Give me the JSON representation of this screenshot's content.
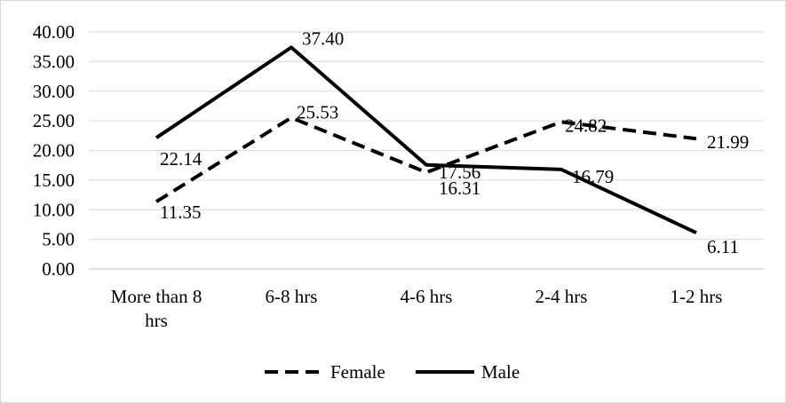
{
  "chart_data": {
    "type": "line",
    "categories": [
      "More than 8 hrs",
      "6-8 hrs",
      "4-6 hrs",
      "2-4 hrs",
      "1-2 hrs"
    ],
    "series": [
      {
        "name": "Female",
        "values": [
          11.35,
          25.53,
          16.31,
          24.82,
          21.99
        ],
        "style": "dashed",
        "color": "#000000"
      },
      {
        "name": "Male",
        "values": [
          22.14,
          37.4,
          17.56,
          16.79,
          6.11
        ],
        "style": "solid",
        "color": "#000000"
      }
    ],
    "yticks": [
      "0.00",
      "5.00",
      "10.00",
      "15.00",
      "20.00",
      "25.00",
      "30.00",
      "35.00",
      "40.00"
    ],
    "ylim": [
      0,
      40
    ],
    "grid": true,
    "legend_position": "bottom",
    "data_labels": {
      "Female": [
        "11.35",
        "25.53",
        "16.31",
        "24.82",
        "21.99"
      ],
      "Male": [
        "22.14",
        "37.40",
        "17.56",
        "16.79",
        "6.11"
      ]
    }
  }
}
